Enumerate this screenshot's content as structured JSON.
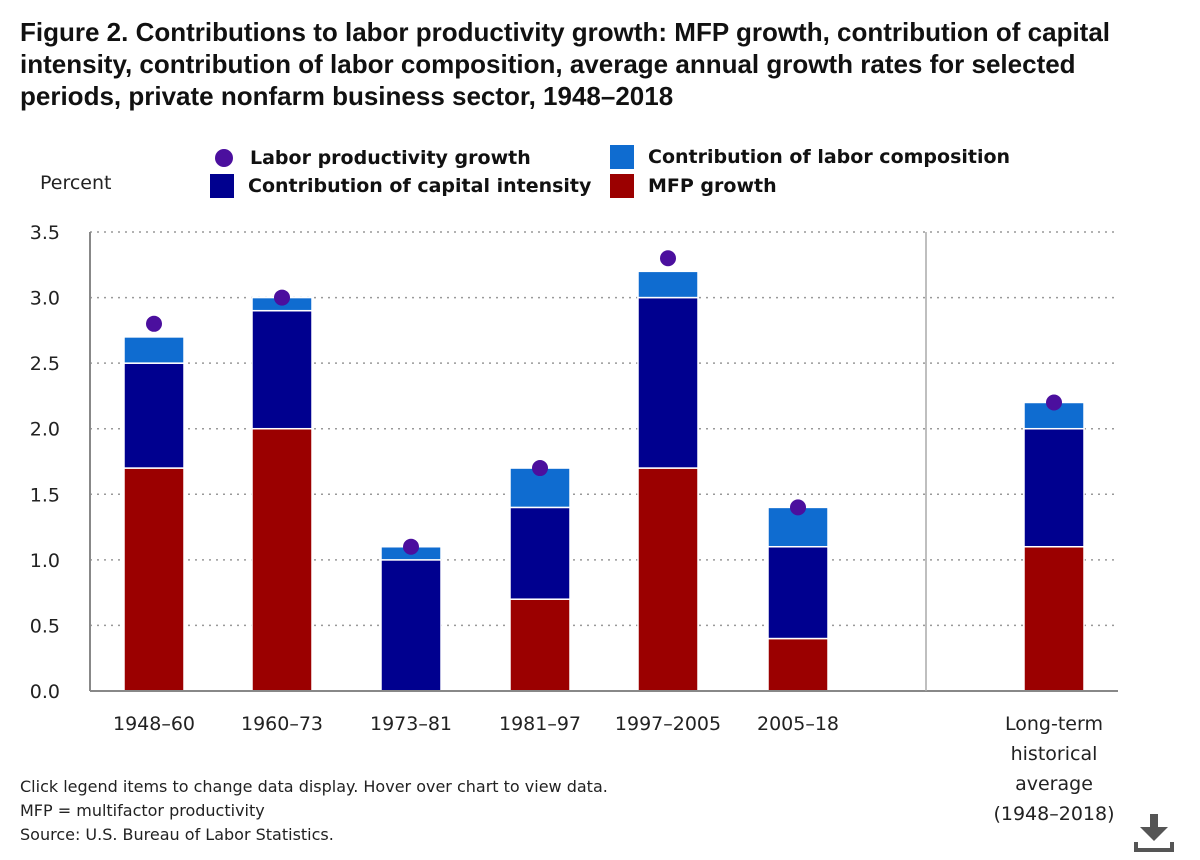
{
  "title": "Figure 2. Contributions to labor productivity growth: MFP growth, contribution of capital intensity, contribution of labor composition, average annual growth rates for selected periods, private nonfarm business sector, 1948–2018",
  "legend": [
    {
      "key": "lp",
      "label": "Labor productivity growth",
      "color": "#4b0f9e",
      "shape": "dot"
    },
    {
      "key": "labor",
      "label": "Contribution of labor composition",
      "color": "#0f6cd0",
      "shape": "square"
    },
    {
      "key": "capital",
      "label": "Contribution of capital intensity",
      "color": "#00008f",
      "shape": "square"
    },
    {
      "key": "mfp",
      "label": "MFP growth",
      "color": "#9b0000",
      "shape": "square"
    }
  ],
  "footnotes": [
    "Click legend items to change data display. Hover over chart to view data.",
    "MFP = multifactor productivity",
    "Source: U.S. Bureau of Labor Statistics."
  ],
  "download_icon": "download-icon",
  "chart_data": {
    "type": "bar",
    "stacked": true,
    "ylabel": "Percent",
    "ylim": [
      0,
      3.5
    ],
    "yticks": [
      "0.0",
      "0.5",
      "1.0",
      "1.5",
      "2.0",
      "2.5",
      "3.0",
      "3.5"
    ],
    "grid": "horizontal dotted",
    "legend_position": "top",
    "categories": [
      "1948–60",
      "1960–73",
      "1973–81",
      "1981–97",
      "1997–2005",
      "2005–18",
      "Long-term historical average (1948–2018)"
    ],
    "category_lines": [
      [
        "1948–60"
      ],
      [
        "1960–73"
      ],
      [
        "1973–81"
      ],
      [
        "1981–97"
      ],
      [
        "1997–2005"
      ],
      [
        "2005–18"
      ],
      [
        "Long-term",
        "historical",
        "average",
        "(1948–2018)"
      ]
    ],
    "series": [
      {
        "name": "MFP growth",
        "type": "bar",
        "color": "#9b0000",
        "values": [
          1.7,
          2.0,
          0.0,
          0.7,
          1.7,
          0.4,
          1.1
        ]
      },
      {
        "name": "Contribution of capital intensity",
        "type": "bar",
        "color": "#00008f",
        "values": [
          0.8,
          0.9,
          1.0,
          0.7,
          1.3,
          0.7,
          0.9
        ]
      },
      {
        "name": "Contribution of labor composition",
        "type": "bar",
        "color": "#0f6cd0",
        "values": [
          0.2,
          0.1,
          0.1,
          0.3,
          0.2,
          0.3,
          0.2
        ]
      },
      {
        "name": "Labor productivity growth",
        "type": "point",
        "color": "#4b0f9e",
        "values": [
          2.8,
          3.0,
          1.1,
          1.7,
          3.3,
          1.4,
          2.2
        ]
      }
    ]
  }
}
